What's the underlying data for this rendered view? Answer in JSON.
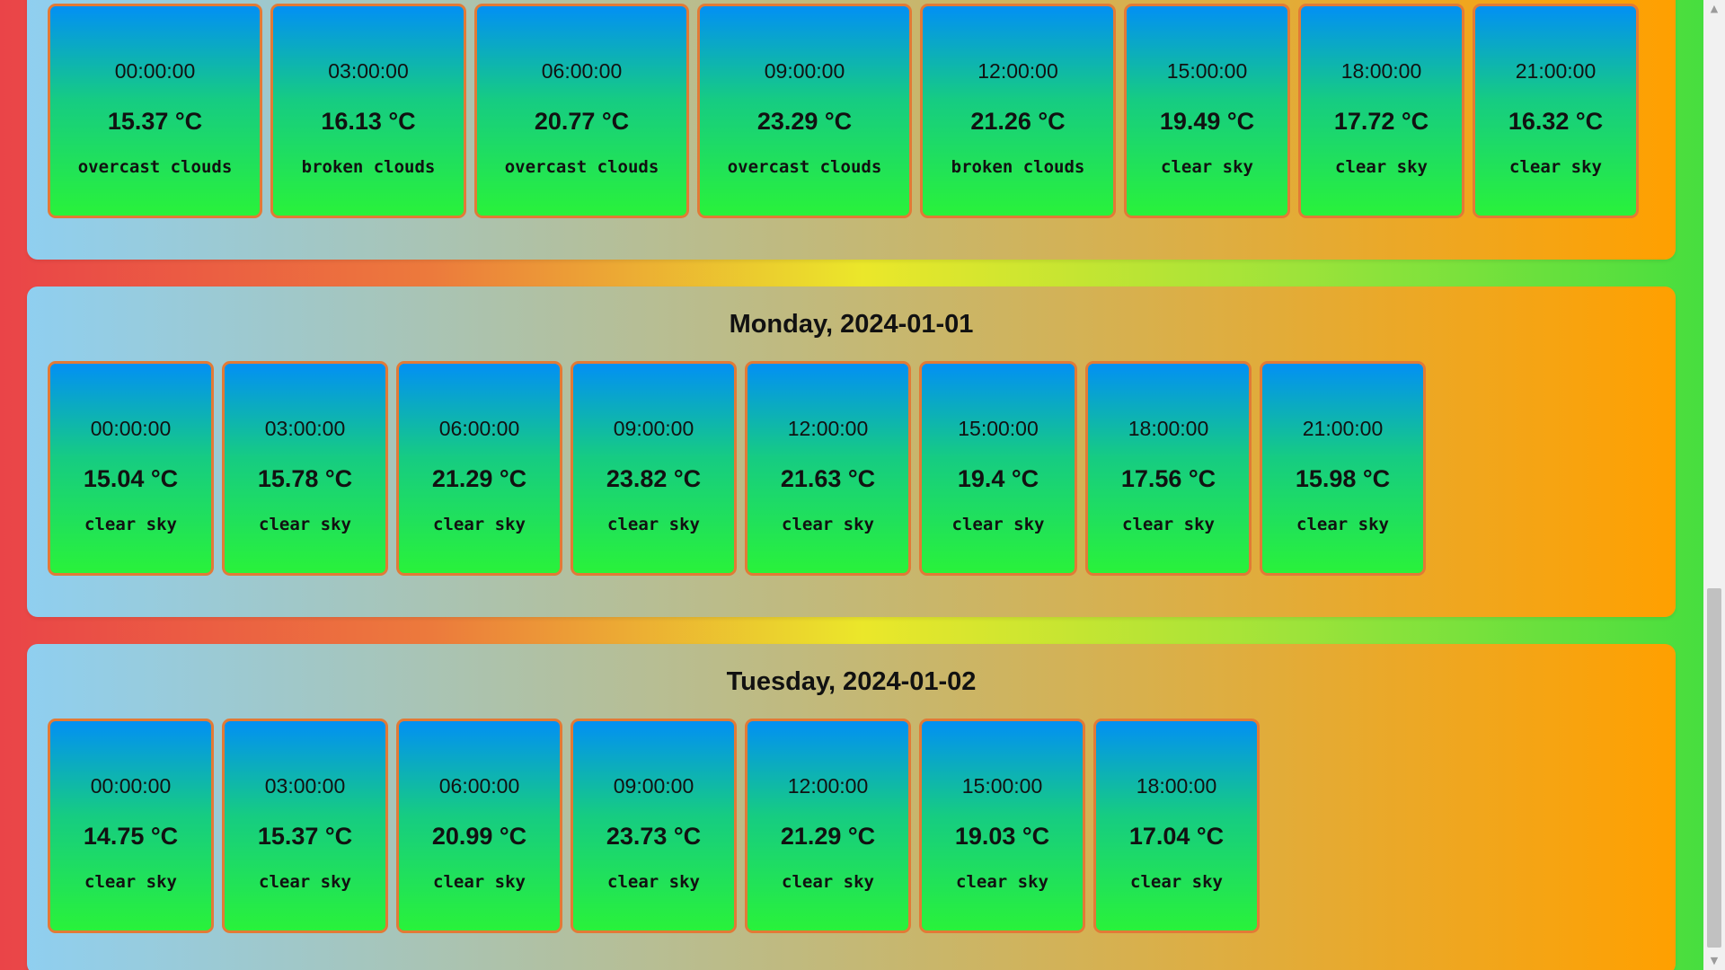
{
  "days": [
    {
      "title": "",
      "slots": [
        {
          "time": "00:00:00",
          "temp": "15.37 °C",
          "desc": "overcast clouds"
        },
        {
          "time": "03:00:00",
          "temp": "16.13 °C",
          "desc": "broken clouds"
        },
        {
          "time": "06:00:00",
          "temp": "20.77 °C",
          "desc": "overcast clouds"
        },
        {
          "time": "09:00:00",
          "temp": "23.29 °C",
          "desc": "overcast clouds"
        },
        {
          "time": "12:00:00",
          "temp": "21.26 °C",
          "desc": "broken clouds"
        },
        {
          "time": "15:00:00",
          "temp": "19.49 °C",
          "desc": "clear sky"
        },
        {
          "time": "18:00:00",
          "temp": "17.72 °C",
          "desc": "clear sky"
        },
        {
          "time": "21:00:00",
          "temp": "16.32 °C",
          "desc": "clear sky"
        }
      ]
    },
    {
      "title": "Monday, 2024-01-01",
      "slots": [
        {
          "time": "00:00:00",
          "temp": "15.04 °C",
          "desc": "clear sky"
        },
        {
          "time": "03:00:00",
          "temp": "15.78 °C",
          "desc": "clear sky"
        },
        {
          "time": "06:00:00",
          "temp": "21.29 °C",
          "desc": "clear sky"
        },
        {
          "time": "09:00:00",
          "temp": "23.82 °C",
          "desc": "clear sky"
        },
        {
          "time": "12:00:00",
          "temp": "21.63 °C",
          "desc": "clear sky"
        },
        {
          "time": "15:00:00",
          "temp": "19.4 °C",
          "desc": "clear sky"
        },
        {
          "time": "18:00:00",
          "temp": "17.56 °C",
          "desc": "clear sky"
        },
        {
          "time": "21:00:00",
          "temp": "15.98 °C",
          "desc": "clear sky"
        }
      ]
    },
    {
      "title": "Tuesday, 2024-01-02",
      "slots": [
        {
          "time": "00:00:00",
          "temp": "14.75 °C",
          "desc": "clear sky"
        },
        {
          "time": "03:00:00",
          "temp": "15.37 °C",
          "desc": "clear sky"
        },
        {
          "time": "06:00:00",
          "temp": "20.99 °C",
          "desc": "clear sky"
        },
        {
          "time": "09:00:00",
          "temp": "23.73 °C",
          "desc": "clear sky"
        },
        {
          "time": "12:00:00",
          "temp": "21.29 °C",
          "desc": "clear sky"
        },
        {
          "time": "15:00:00",
          "temp": "19.03 °C",
          "desc": "clear sky"
        },
        {
          "time": "18:00:00",
          "temp": "17.04 °C",
          "desc": "clear sky"
        }
      ]
    }
  ],
  "scrollbar": {
    "up_icon": "▲",
    "down_icon": "▼"
  }
}
